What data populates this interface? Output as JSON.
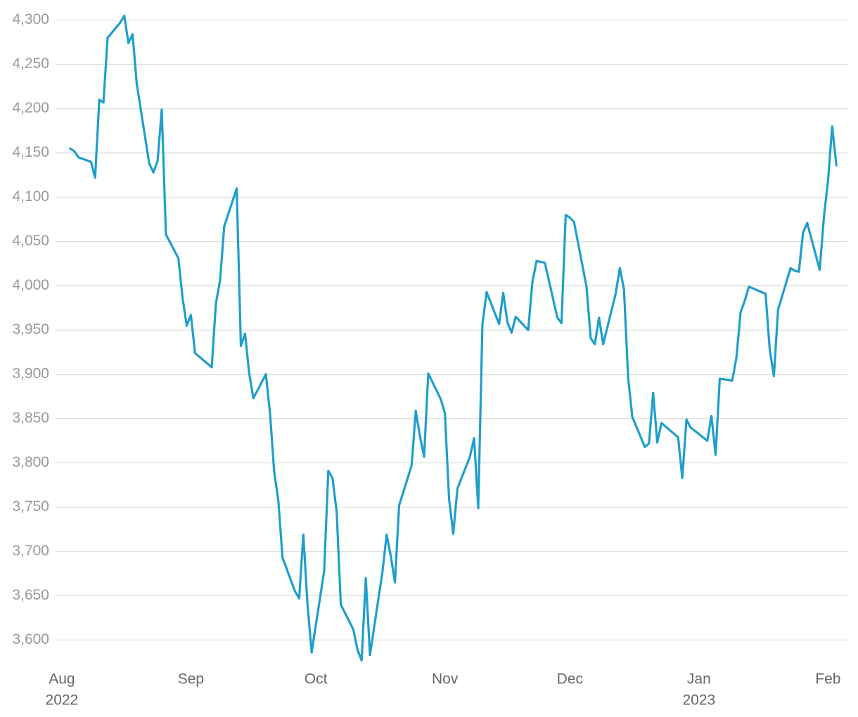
{
  "chart_data": {
    "type": "line",
    "color": "#1f9fca",
    "grid": true,
    "xlim": [
      -1.5,
      189
    ],
    "ylim": [
      3575,
      4310
    ],
    "xticks": [
      {
        "value": 0,
        "label": "Aug"
      },
      {
        "value": 31,
        "label": "Sep"
      },
      {
        "value": 61,
        "label": "Oct"
      },
      {
        "value": 92,
        "label": "Nov"
      },
      {
        "value": 122,
        "label": "Dec"
      },
      {
        "value": 153,
        "label": "Jan"
      },
      {
        "value": 184,
        "label": "Feb"
      }
    ],
    "xtick_years": [
      {
        "value": 0,
        "label": "2022"
      },
      {
        "value": 153,
        "label": "2023"
      }
    ],
    "yticks": [
      {
        "value": 3600,
        "label": "3,600"
      },
      {
        "value": 3650,
        "label": "3,650"
      },
      {
        "value": 3700,
        "label": "3,700"
      },
      {
        "value": 3750,
        "label": "3,750"
      },
      {
        "value": 3800,
        "label": "3,800"
      },
      {
        "value": 3850,
        "label": "3,850"
      },
      {
        "value": 3900,
        "label": "3,900"
      },
      {
        "value": 3950,
        "label": "3,950"
      },
      {
        "value": 4000,
        "label": "4,000"
      },
      {
        "value": 4050,
        "label": "4,050"
      },
      {
        "value": 4100,
        "label": "4,100"
      },
      {
        "value": 4150,
        "label": "4,150"
      },
      {
        "value": 4200,
        "label": "4,200"
      },
      {
        "value": 4250,
        "label": "4,250"
      },
      {
        "value": 4300,
        "label": "4,300"
      }
    ],
    "x": [
      2,
      3,
      4,
      7,
      8,
      9,
      10,
      11,
      14,
      15,
      16,
      17,
      18,
      21,
      22,
      23,
      24,
      25,
      28,
      29,
      30,
      31,
      32,
      36,
      37,
      38,
      39,
      42,
      43,
      44,
      45,
      46,
      49,
      50,
      51,
      52,
      53,
      56,
      57,
      58,
      59,
      60,
      63,
      64,
      65,
      66,
      67,
      70,
      71,
      72,
      73,
      74,
      77,
      78,
      79,
      80,
      81,
      84,
      85,
      86,
      87,
      88,
      91,
      92,
      93,
      94,
      95,
      98,
      99,
      100,
      101,
      102,
      105,
      106,
      107,
      108,
      109,
      112,
      113,
      114,
      116,
      119,
      120,
      121,
      122,
      123,
      126,
      127,
      128,
      129,
      130,
      133,
      134,
      135,
      136,
      137,
      140,
      141,
      142,
      143,
      144,
      148,
      149,
      150,
      151,
      155,
      156,
      157,
      158,
      161,
      162,
      163,
      164,
      165,
      169,
      170,
      171,
      172,
      175,
      176,
      177,
      178,
      179,
      182,
      183,
      184,
      185,
      186
    ],
    "values": [
      4155,
      4152,
      4145,
      4140,
      4122,
      4210,
      4207,
      4280,
      4297,
      4305,
      4274,
      4284,
      4228,
      4138,
      4128,
      4141,
      4199,
      4058,
      4031,
      3986,
      3955,
      3967,
      3924,
      3908,
      3980,
      4006,
      4067,
      4110,
      3932,
      3946,
      3901,
      3873,
      3900,
      3856,
      3790,
      3757,
      3693,
      3655,
      3647,
      3719,
      3640,
      3586,
      3678,
      3791,
      3783,
      3745,
      3640,
      3612,
      3589,
      3577,
      3670,
      3583,
      3677,
      3719,
      3695,
      3665,
      3752,
      3797,
      3859,
      3830,
      3807,
      3901,
      3872,
      3856,
      3759,
      3720,
      3771,
      3807,
      3828,
      3749,
      3956,
      3993,
      3957,
      3992,
      3959,
      3947,
      3965,
      3950,
      4004,
      4028,
      4026,
      3964,
      3958,
      4080,
      4077,
      4072,
      3999,
      3941,
      3934,
      3964,
      3934,
      3991,
      4020,
      3996,
      3896,
      3852,
      3818,
      3822,
      3879,
      3823,
      3845,
      3829,
      3783,
      3849,
      3840,
      3825,
      3853,
      3809,
      3895,
      3893,
      3919,
      3970,
      3983,
      3999,
      3991,
      3928,
      3898,
      3973,
      4020,
      4017,
      4016,
      4060,
      4071,
      4018,
      4077,
      4119,
      4180,
      4136
    ]
  }
}
